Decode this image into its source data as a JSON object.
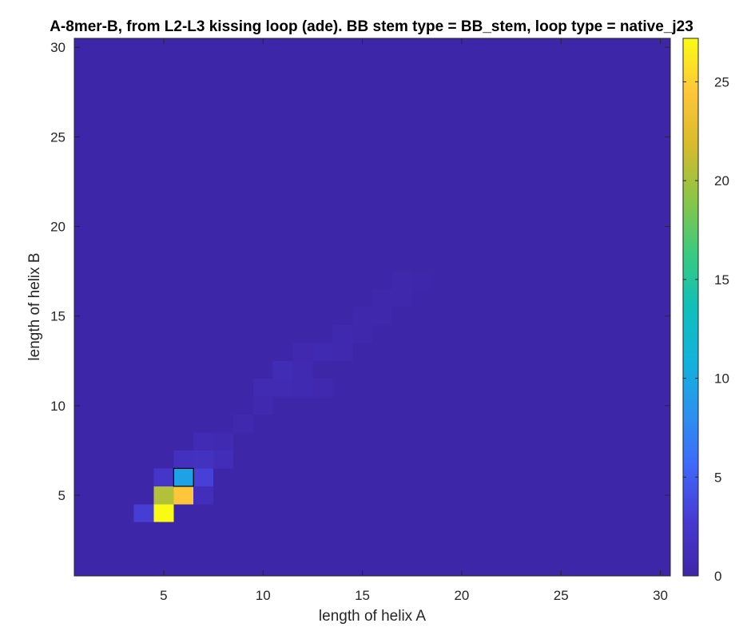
{
  "chart_data": {
    "type": "heatmap",
    "title": "A-8mer-B, from L2-L3 kissing loop (ade). BB stem type = BB_stem, loop type = native_j23",
    "xlabel": "length of helix A",
    "ylabel": "length of helix B",
    "xlim": [
      0.5,
      30.5
    ],
    "ylim": [
      0.5,
      30.5
    ],
    "x_ticks": [
      5,
      10,
      15,
      20,
      25,
      30
    ],
    "y_ticks": [
      5,
      10,
      15,
      20,
      25,
      30
    ],
    "colorbar": {
      "min": 0,
      "max": 27.2,
      "ticks": [
        0,
        5,
        10,
        15,
        20,
        25
      ],
      "colormap": "parula"
    },
    "background_value": 0,
    "cells": [
      {
        "x": 4,
        "y": 4,
        "value": 3
      },
      {
        "x": 5,
        "y": 4,
        "value": 27.2
      },
      {
        "x": 5,
        "y": 5,
        "value": 20.5
      },
      {
        "x": 6,
        "y": 5,
        "value": 24.5
      },
      {
        "x": 7,
        "y": 5,
        "value": 1.2
      },
      {
        "x": 5,
        "y": 6,
        "value": 2.2
      },
      {
        "x": 6,
        "y": 6,
        "value": 9.5
      },
      {
        "x": 7,
        "y": 6,
        "value": 3.2
      },
      {
        "x": 6,
        "y": 7,
        "value": 1.5
      },
      {
        "x": 7,
        "y": 7,
        "value": 1.6
      },
      {
        "x": 8,
        "y": 7,
        "value": 1.1
      },
      {
        "x": 7,
        "y": 8,
        "value": 0.8
      },
      {
        "x": 8,
        "y": 8,
        "value": 0.6
      },
      {
        "x": 9,
        "y": 9,
        "value": 0.5
      },
      {
        "x": 10,
        "y": 10,
        "value": 0.5
      },
      {
        "x": 10,
        "y": 11,
        "value": 0.7
      },
      {
        "x": 11,
        "y": 11,
        "value": 0.7
      },
      {
        "x": 12,
        "y": 11,
        "value": 0.6
      },
      {
        "x": 13,
        "y": 11,
        "value": 0.5
      },
      {
        "x": 11,
        "y": 12,
        "value": 0.9
      },
      {
        "x": 12,
        "y": 12,
        "value": 0.6
      },
      {
        "x": 12,
        "y": 13,
        "value": 0.5
      },
      {
        "x": 13,
        "y": 13,
        "value": 0.6
      },
      {
        "x": 14,
        "y": 13,
        "value": 0.5
      },
      {
        "x": 14,
        "y": 14,
        "value": 0.4
      },
      {
        "x": 15,
        "y": 14,
        "value": 0.3
      },
      {
        "x": 15,
        "y": 15,
        "value": 0.3
      },
      {
        "x": 16,
        "y": 15,
        "value": 0.3
      },
      {
        "x": 16,
        "y": 16,
        "value": 0.3
      },
      {
        "x": 17,
        "y": 16,
        "value": 0.3
      },
      {
        "x": 17,
        "y": 17,
        "value": 0.3
      },
      {
        "x": 18,
        "y": 17,
        "value": 0.2
      }
    ],
    "highlight_cell": {
      "x": 6,
      "y": 6
    }
  }
}
